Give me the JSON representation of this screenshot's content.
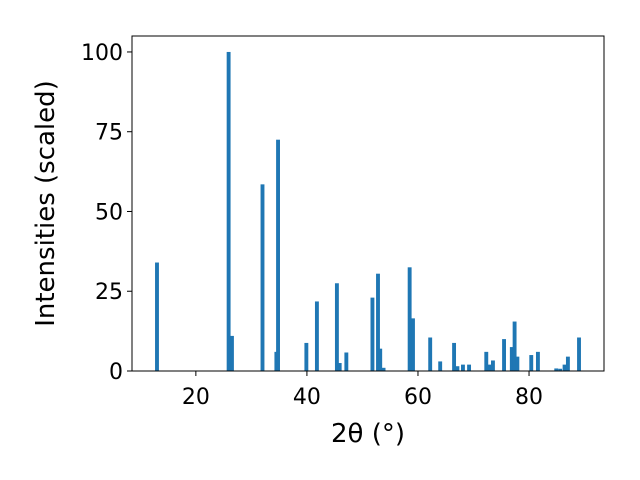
{
  "chart_data": {
    "type": "bar",
    "title": "",
    "xlabel": "2θ (°)",
    "ylabel": "Intensities (scaled)",
    "xlim": [
      8.5,
      93.5
    ],
    "ylim": [
      0,
      105
    ],
    "xticks": [
      20,
      40,
      60,
      80
    ],
    "yticks": [
      0,
      25,
      50,
      75,
      100
    ],
    "grid": false,
    "bar_color": "#1f77b4",
    "bar_width_deg": 0.7,
    "x": [
      13.0,
      25.9,
      26.5,
      32.0,
      34.5,
      34.8,
      39.9,
      41.8,
      45.4,
      45.9,
      47.1,
      51.8,
      52.8,
      53.2,
      53.8,
      58.5,
      59.1,
      62.2,
      64.0,
      66.5,
      67.1,
      68.1,
      69.2,
      72.3,
      72.9,
      73.5,
      75.5,
      76.9,
      77.4,
      77.9,
      80.4,
      81.6,
      84.9,
      85.6,
      86.4,
      87.0,
      89.0
    ],
    "values": [
      34.0,
      100.0,
      11.0,
      58.5,
      6.0,
      72.5,
      8.8,
      21.8,
      27.5,
      2.5,
      5.8,
      23.0,
      30.5,
      7.0,
      1.0,
      32.5,
      16.5,
      10.5,
      3.0,
      8.8,
      1.5,
      2.0,
      2.0,
      6.0,
      2.0,
      3.3,
      10.0,
      7.5,
      15.5,
      4.5,
      5.0,
      6.0,
      0.8,
      0.7,
      2.0,
      4.5,
      10.5
    ]
  }
}
